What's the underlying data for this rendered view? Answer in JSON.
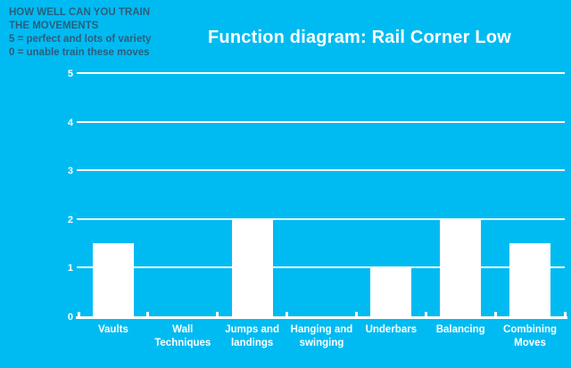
{
  "app": {
    "background_color": "#00BBF2",
    "annotation_text_color": "#2B5E7C",
    "chart_text_color": "#FFFFFF"
  },
  "annotation": {
    "line1": "HOW WELL CAN YOU TRAIN",
    "line2": "THE MOVEMENTS",
    "line3": "5 = perfect and lots of variety",
    "line4": "0 = unable train these moves"
  },
  "chart_data": {
    "type": "bar",
    "title": "Function diagram: Rail Corner Low",
    "categories": [
      "Vaults",
      "Wall Techniques",
      "Jumps and landings",
      "Hanging and swinging",
      "Underbars",
      "Balancing",
      "Combining Moves"
    ],
    "values": [
      1.5,
      0,
      2,
      0,
      1,
      2,
      1.5
    ],
    "xlabel": "",
    "ylabel": "",
    "ylim": [
      0,
      5
    ],
    "ytick_interval": 1,
    "ytick_labels": [
      "0",
      "1",
      "2",
      "3",
      "4",
      "5"
    ],
    "grid": true,
    "legend_position": "none",
    "bar_color": "#FFFFFF",
    "gridline_color": "#FFFFFF"
  }
}
